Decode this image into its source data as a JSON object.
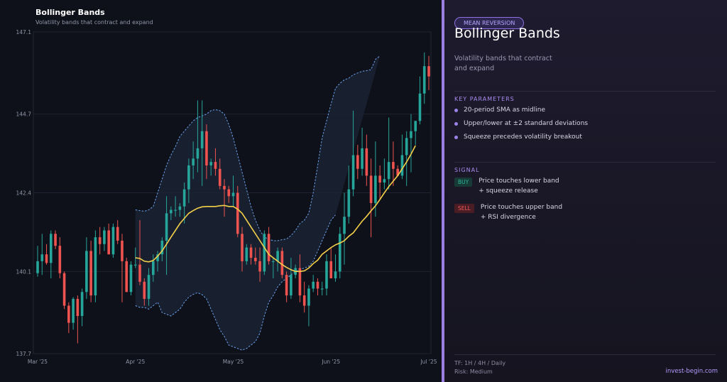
{
  "chart_data": {
    "type": "candlestick",
    "title": "Bollinger Bands",
    "subtitle": "Volatility bands that contract and expand",
    "ylim": [
      137.7,
      147.1
    ],
    "y_ticks": [
      "147.1",
      "144.7",
      "142.4",
      "140.1",
      "137.7"
    ],
    "x_ticks": [
      "Mar '25",
      "Apr '25",
      "May '25",
      "Jun '25",
      "Jul '25"
    ],
    "x_tick_positions": [
      0,
      22,
      44,
      66,
      88
    ],
    "n_bars": 89,
    "candles": [
      [
        140.05,
        140.85,
        139.95,
        140.4
      ],
      [
        140.4,
        141.2,
        140.0,
        140.6
      ],
      [
        140.6,
        140.9,
        140.3,
        140.35
      ],
      [
        140.35,
        141.3,
        139.9,
        141.2
      ],
      [
        141.2,
        141.3,
        140.75,
        140.85
      ],
      [
        140.85,
        141.1,
        139.9,
        140.05
      ],
      [
        140.05,
        140.1,
        139.0,
        139.1
      ],
      [
        139.1,
        139.2,
        138.3,
        138.6
      ],
      [
        138.6,
        139.35,
        138.4,
        139.3
      ],
      [
        139.3,
        139.4,
        138.0,
        138.8
      ],
      [
        138.8,
        139.6,
        138.5,
        139.5
      ],
      [
        139.5,
        141.1,
        139.3,
        140.7
      ],
      [
        140.7,
        141.0,
        139.2,
        139.4
      ],
      [
        139.4,
        141.3,
        139.2,
        141.1
      ],
      [
        141.1,
        141.4,
        140.6,
        140.9
      ],
      [
        140.9,
        141.4,
        140.7,
        141.3
      ],
      [
        141.3,
        141.5,
        140.6,
        140.6
      ],
      [
        140.6,
        141.5,
        140.5,
        141.4
      ],
      [
        141.4,
        141.6,
        140.9,
        141.0
      ],
      [
        141.0,
        141.2,
        139.2,
        140.4
      ],
      [
        140.4,
        140.5,
        139.5,
        139.5
      ],
      [
        139.5,
        140.4,
        139.4,
        140.3
      ],
      [
        140.3,
        140.8,
        140.2,
        140.3
      ],
      [
        140.3,
        141.6,
        139.7,
        139.8
      ],
      [
        139.8,
        139.9,
        139.1,
        139.3
      ],
      [
        139.3,
        140.2,
        139.1,
        140.0
      ],
      [
        140.0,
        140.6,
        139.8,
        140.4
      ],
      [
        140.4,
        140.7,
        140.1,
        140.6
      ],
      [
        140.6,
        141.1,
        140.4,
        141.0
      ],
      [
        141.0,
        142.3,
        140.0,
        141.8
      ],
      [
        141.8,
        142.0,
        141.6,
        141.9
      ],
      [
        141.9,
        142.3,
        141.7,
        141.9
      ],
      [
        141.9,
        142.1,
        141.7,
        142.0
      ],
      [
        142.0,
        142.7,
        141.5,
        142.5
      ],
      [
        142.5,
        143.4,
        142.1,
        143.2
      ],
      [
        143.2,
        143.9,
        142.8,
        143.4
      ],
      [
        143.4,
        145.1,
        143.0,
        143.7
      ],
      [
        143.7,
        145.1,
        142.6,
        144.2
      ],
      [
        144.2,
        144.4,
        142.8,
        143.2
      ],
      [
        143.2,
        143.4,
        142.9,
        143.3
      ],
      [
        143.3,
        143.7,
        142.9,
        143.1
      ],
      [
        143.1,
        143.4,
        142.5,
        142.6
      ],
      [
        142.6,
        142.8,
        141.7,
        142.5
      ],
      [
        142.5,
        142.6,
        142.1,
        142.3
      ],
      [
        142.3,
        142.9,
        142.0,
        142.4
      ],
      [
        142.4,
        142.6,
        141.1,
        141.2
      ],
      [
        141.2,
        141.4,
        140.1,
        140.4
      ],
      [
        140.4,
        140.9,
        140.3,
        140.8
      ],
      [
        140.8,
        140.9,
        140.3,
        140.5
      ],
      [
        140.5,
        140.8,
        140.3,
        140.4
      ],
      [
        140.4,
        140.8,
        139.8,
        140.1
      ],
      [
        140.1,
        141.3,
        140.0,
        141.2
      ],
      [
        141.2,
        141.4,
        140.3,
        140.4
      ],
      [
        140.4,
        140.5,
        139.9,
        140.4
      ],
      [
        140.4,
        140.8,
        140.1,
        140.7
      ],
      [
        140.7,
        140.8,
        139.9,
        140.0
      ],
      [
        140.0,
        140.1,
        139.2,
        139.4
      ],
      [
        139.4,
        140.5,
        139.3,
        140.0
      ],
      [
        140.0,
        140.3,
        139.9,
        140.2
      ],
      [
        140.2,
        140.6,
        139.2,
        139.4
      ],
      [
        139.4,
        139.8,
        138.9,
        139.1
      ],
      [
        139.1,
        139.7,
        138.5,
        139.6
      ],
      [
        139.6,
        140.0,
        139.5,
        139.8
      ],
      [
        139.8,
        139.9,
        139.4,
        139.6
      ],
      [
        139.6,
        139.8,
        139.4,
        139.6
      ],
      [
        139.6,
        140.6,
        139.4,
        140.4
      ],
      [
        140.4,
        140.8,
        139.9,
        139.9
      ],
      [
        139.9,
        140.6,
        139.8,
        140.1
      ],
      [
        140.1,
        141.4,
        139.9,
        141.2
      ],
      [
        141.2,
        142.4,
        140.3,
        141.7
      ],
      [
        141.7,
        143.2,
        141.5,
        142.5
      ],
      [
        142.5,
        144.8,
        142.3,
        143.5
      ],
      [
        143.5,
        143.8,
        142.8,
        143.1
      ],
      [
        143.1,
        144.3,
        142.9,
        143.7
      ],
      [
        143.7,
        144.1,
        142.6,
        142.9
      ],
      [
        142.9,
        143.4,
        141.1,
        142.1
      ],
      [
        142.1,
        143.9,
        141.7,
        142.9
      ],
      [
        142.9,
        143.2,
        142.2,
        142.7
      ],
      [
        142.7,
        143.4,
        142.5,
        142.8
      ],
      [
        142.8,
        144.6,
        142.5,
        143.3
      ],
      [
        143.3,
        143.9,
        142.6,
        143.1
      ],
      [
        143.1,
        143.2,
        142.9,
        142.9
      ],
      [
        142.9,
        144.1,
        142.8,
        143.5
      ],
      [
        143.5,
        144.2,
        142.6,
        144.0
      ],
      [
        144.0,
        144.7,
        143.0,
        144.2
      ],
      [
        144.2,
        144.5,
        143.8,
        144.5
      ],
      [
        144.5,
        145.8,
        144.4,
        145.3
      ],
      [
        145.3,
        146.5,
        145.0,
        146.1
      ],
      [
        146.1,
        146.4,
        145.4,
        145.8
      ]
    ],
    "sma": [
      [
        22,
        140.5
      ],
      [
        23,
        140.48
      ],
      [
        24,
        140.4
      ],
      [
        25,
        140.38
      ],
      [
        26,
        140.42
      ],
      [
        27,
        140.55
      ],
      [
        28,
        140.7
      ],
      [
        29,
        140.9
      ],
      [
        30,
        141.1
      ],
      [
        31,
        141.3
      ],
      [
        32,
        141.5
      ],
      [
        33,
        141.65
      ],
      [
        34,
        141.8
      ],
      [
        35,
        141.88
      ],
      [
        36,
        141.95
      ],
      [
        37,
        141.99
      ],
      [
        38,
        142.0
      ],
      [
        39,
        142.0
      ],
      [
        40,
        142.0
      ],
      [
        41,
        142.02
      ],
      [
        42,
        142.03
      ],
      [
        43,
        142.0
      ],
      [
        44,
        142.0
      ],
      [
        45,
        141.92
      ],
      [
        46,
        141.8
      ],
      [
        47,
        141.6
      ],
      [
        48,
        141.4
      ],
      [
        49,
        141.2
      ],
      [
        50,
        141.0
      ],
      [
        51,
        140.8
      ],
      [
        52,
        140.6
      ],
      [
        53,
        140.5
      ],
      [
        54,
        140.4
      ],
      [
        55,
        140.3
      ],
      [
        56,
        140.22
      ],
      [
        57,
        140.15
      ],
      [
        58,
        140.1
      ],
      [
        59,
        140.1
      ],
      [
        60,
        140.12
      ],
      [
        61,
        140.2
      ],
      [
        62,
        140.33
      ],
      [
        63,
        140.43
      ],
      [
        64,
        140.6
      ],
      [
        65,
        140.7
      ],
      [
        66,
        140.8
      ],
      [
        67,
        140.88
      ],
      [
        68,
        140.93
      ],
      [
        69,
        141.0
      ],
      [
        70,
        141.13
      ],
      [
        71,
        141.23
      ],
      [
        72,
        141.4
      ],
      [
        73,
        141.57
      ],
      [
        74,
        141.71
      ],
      [
        75,
        141.87
      ],
      [
        76,
        142.02
      ],
      [
        77,
        142.2
      ],
      [
        78,
        142.4
      ],
      [
        79,
        142.58
      ],
      [
        80,
        142.74
      ],
      [
        81,
        142.9
      ],
      [
        82,
        143.1
      ],
      [
        83,
        143.3
      ],
      [
        84,
        143.53
      ],
      [
        85,
        143.78
      ]
    ],
    "upper": [
      [
        22,
        141.9
      ],
      [
        23,
        141.88
      ],
      [
        24,
        141.86
      ],
      [
        25,
        141.9
      ],
      [
        26,
        142.0
      ],
      [
        27,
        142.4
      ],
      [
        28,
        142.8
      ],
      [
        29,
        143.2
      ],
      [
        30,
        143.5
      ],
      [
        31,
        143.75
      ],
      [
        32,
        144.05
      ],
      [
        33,
        144.2
      ],
      [
        34,
        144.35
      ],
      [
        35,
        144.5
      ],
      [
        36,
        144.6
      ],
      [
        37,
        144.65
      ],
      [
        38,
        144.7
      ],
      [
        39,
        144.8
      ],
      [
        40,
        144.83
      ],
      [
        41,
        144.8
      ],
      [
        42,
        144.7
      ],
      [
        43,
        144.4
      ],
      [
        44,
        144.0
      ],
      [
        45,
        143.5
      ],
      [
        46,
        143.0
      ],
      [
        47,
        142.5
      ],
      [
        48,
        142.0
      ],
      [
        49,
        141.6
      ],
      [
        50,
        141.3
      ],
      [
        51,
        141.1
      ],
      [
        52,
        141.05
      ],
      [
        53,
        141.0
      ],
      [
        54,
        141.0
      ],
      [
        55,
        141.03
      ],
      [
        56,
        141.05
      ],
      [
        57,
        141.15
      ],
      [
        58,
        141.3
      ],
      [
        59,
        141.5
      ],
      [
        60,
        141.6
      ],
      [
        61,
        141.8
      ],
      [
        62,
        142.4
      ],
      [
        63,
        143.2
      ],
      [
        64,
        144.0
      ],
      [
        65,
        144.5
      ],
      [
        66,
        145.0
      ],
      [
        67,
        145.45
      ],
      [
        68,
        145.6
      ],
      [
        69,
        145.7
      ],
      [
        70,
        145.75
      ],
      [
        71,
        145.85
      ],
      [
        72,
        145.9
      ],
      [
        73,
        145.95
      ],
      [
        74,
        145.97
      ],
      [
        75,
        146.0
      ],
      [
        76,
        146.3
      ],
      [
        77,
        146.4
      ]
    ],
    "lower": [
      [
        22,
        139.1
      ],
      [
        23,
        139.05
      ],
      [
        24,
        139.05
      ],
      [
        25,
        139.0
      ],
      [
        26,
        139.1
      ],
      [
        27,
        139.2
      ],
      [
        28,
        138.9
      ],
      [
        29,
        138.85
      ],
      [
        30,
        138.8
      ],
      [
        31,
        138.9
      ],
      [
        32,
        139.0
      ],
      [
        33,
        139.2
      ],
      [
        34,
        139.35
      ],
      [
        35,
        139.43
      ],
      [
        36,
        139.48
      ],
      [
        37,
        139.42
      ],
      [
        38,
        139.3
      ],
      [
        39,
        139.0
      ],
      [
        40,
        138.7
      ],
      [
        41,
        138.4
      ],
      [
        42,
        138.2
      ],
      [
        43,
        137.95
      ],
      [
        44,
        137.9
      ],
      [
        45,
        137.85
      ],
      [
        46,
        137.8
      ],
      [
        47,
        137.85
      ],
      [
        48,
        137.95
      ],
      [
        49,
        138.05
      ],
      [
        50,
        138.3
      ],
      [
        51,
        138.8
      ],
      [
        52,
        139.2
      ],
      [
        53,
        139.4
      ],
      [
        54,
        139.65
      ],
      [
        55,
        139.8
      ],
      [
        56,
        139.9
      ],
      [
        57,
        140.0
      ],
      [
        58,
        140.1
      ],
      [
        59,
        140.15
      ],
      [
        60,
        140.2
      ],
      [
        61,
        140.25
      ],
      [
        62,
        140.4
      ],
      [
        63,
        140.7
      ],
      [
        64,
        141.0
      ],
      [
        65,
        141.3
      ],
      [
        66,
        141.6
      ],
      [
        67,
        141.75
      ]
    ],
    "colors": {
      "up": "#26a69a",
      "down": "#ef5350",
      "sma": "#f5d04a",
      "band": "#6aa0e8",
      "bg": "#0f111a"
    },
    "grid": true,
    "legend": "none"
  },
  "panel": {
    "tag": "MEAN REVERSION",
    "title": "Bollinger Bands",
    "subtitle": "Volatility bands that contract and expand",
    "key_header": "KEY PARAMETERS",
    "key_items": [
      "20-period SMA as midline",
      "Upper/lower at ±2 standard deviations",
      "Squeeze precedes volatility breakout"
    ],
    "signal_header": "SIGNAL",
    "buy_tag": "BUY",
    "buy_text": "Price touches lower band + squeeze release",
    "sell_tag": "SELL",
    "sell_text": "Price touches upper band + RSI divergence",
    "footer_tf": "TF: 1H / 4H / Daily",
    "footer_risk": "Risk: Medium",
    "brand": "invest-begin.com"
  }
}
